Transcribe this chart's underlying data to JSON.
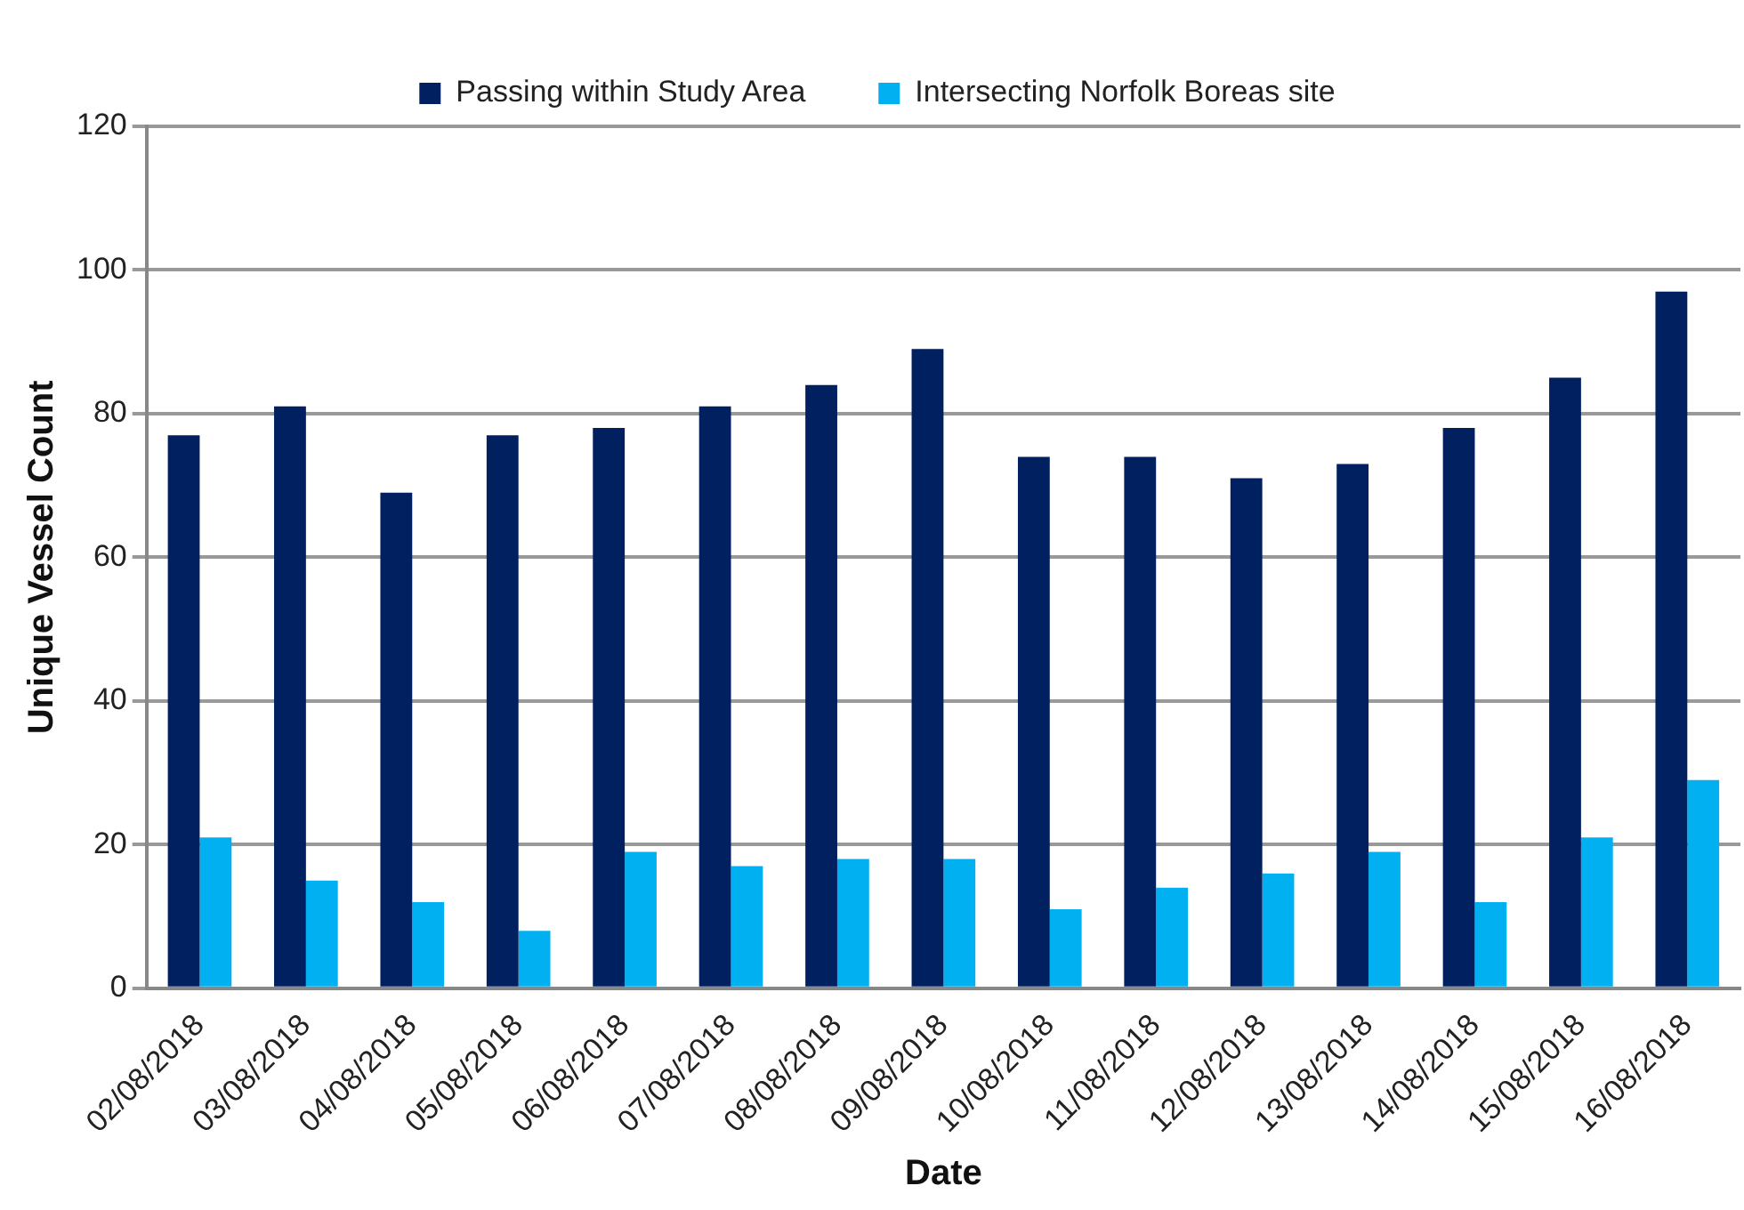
{
  "chart_data": {
    "type": "bar",
    "xlabel": "Date",
    "ylabel": "Unique Vessel Count",
    "categories": [
      "02/08/2018",
      "03/08/2018",
      "04/08/2018",
      "05/08/2018",
      "06/08/2018",
      "07/08/2018",
      "08/08/2018",
      "09/08/2018",
      "10/08/2018",
      "11/08/2018",
      "12/08/2018",
      "13/08/2018",
      "14/08/2018",
      "15/08/2018",
      "16/08/2018"
    ],
    "series": [
      {
        "name": "Passing within Study Area",
        "color": "#002060",
        "values": [
          77,
          81,
          69,
          77,
          78,
          81,
          84,
          89,
          74,
          74,
          71,
          73,
          78,
          85,
          97
        ]
      },
      {
        "name": "Intersecting Norfolk Boreas site",
        "color": "#00b0f0",
        "values": [
          21,
          15,
          12,
          8,
          19,
          17,
          18,
          18,
          11,
          14,
          16,
          19,
          12,
          21,
          29
        ]
      }
    ],
    "ylim": [
      0,
      120
    ],
    "yticks": [
      0,
      20,
      40,
      60,
      80,
      100,
      120
    ],
    "grid": "y",
    "legend": "top"
  }
}
